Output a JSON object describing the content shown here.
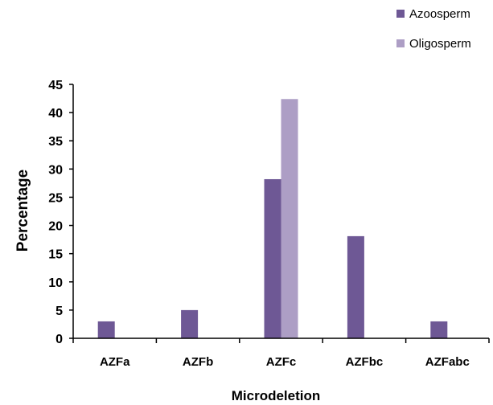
{
  "chart_data": {
    "type": "bar",
    "categories": [
      "AZFa",
      "AZFb",
      "AZFc",
      "AZFbc",
      "AZFabc"
    ],
    "series": [
      {
        "name": "Azoosperm",
        "values": [
          3,
          5,
          28.2,
          18.1,
          3
        ],
        "color": "#6e5895"
      },
      {
        "name": "Oligosperm",
        "values": [
          0,
          0,
          42.4,
          0,
          0
        ],
        "color": "#ad9ec5"
      }
    ],
    "title": "",
    "xlabel": "Microdeletion",
    "ylabel": "Percentage",
    "ylim": [
      0,
      45
    ],
    "yticks": [
      0,
      5,
      10,
      15,
      20,
      25,
      30,
      35,
      40,
      45
    ],
    "grid": false,
    "legend_position": "top-right"
  }
}
